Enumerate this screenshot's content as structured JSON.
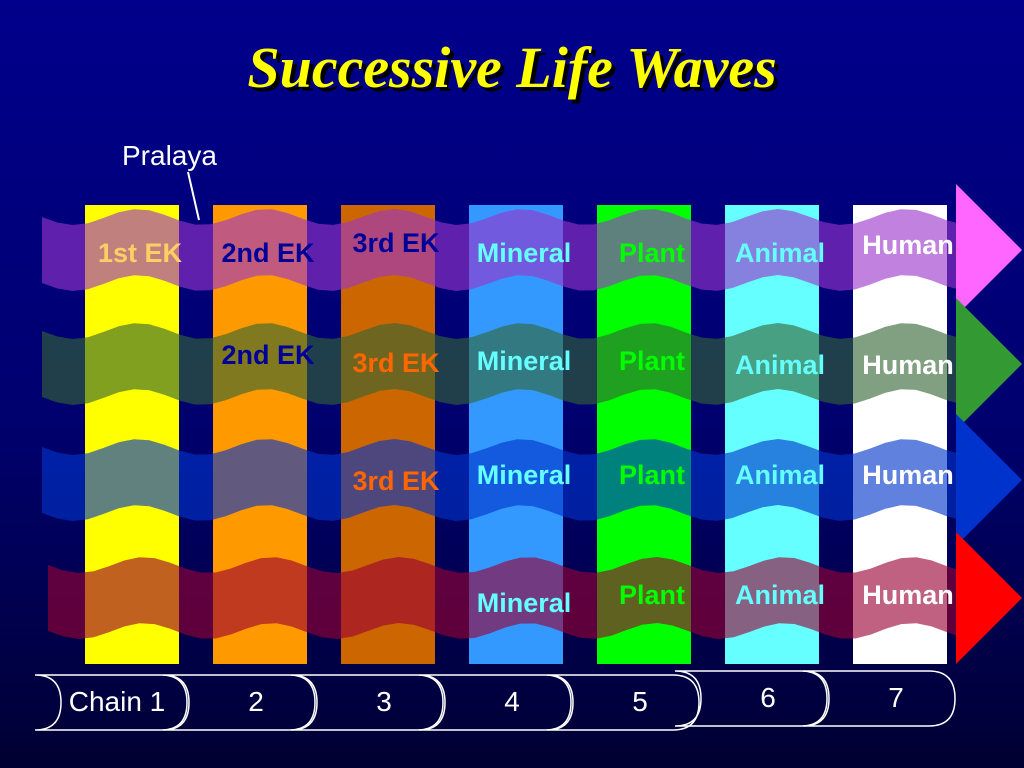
{
  "title": "Successive Life Waves",
  "pralaya_label": "Pralaya",
  "chain_labels": [
    "Chain 1",
    "2",
    "3",
    "4",
    "5",
    "6",
    "7"
  ],
  "column_colors": [
    "#ffff00",
    "#ff9900",
    "#cc6600",
    "#3399ff",
    "#00ff00",
    "#66ffff",
    "#ffffff"
  ],
  "waves": [
    {
      "band_color": "#9933cc",
      "arrow_color": "#ff66ff",
      "items": [
        {
          "text": "1st EK",
          "color": "#ffcc66"
        },
        {
          "text": "2nd EK",
          "color": "#000099"
        },
        {
          "text": "3rd EK",
          "color": "#000099"
        },
        {
          "text": "Mineral",
          "color": "#66ffff"
        },
        {
          "text": "Plant",
          "color": "#00ff00"
        },
        {
          "text": "Animal",
          "color": "#66ffff"
        },
        {
          "text": "Human",
          "color": "#ffffff"
        }
      ]
    },
    {
      "band_color": "#336633",
      "arrow_color": "#339933",
      "items": [
        {
          "text": "2nd EK",
          "color": "#000099"
        },
        {
          "text": "3rd EK",
          "color": "#ff6600"
        },
        {
          "text": "Mineral",
          "color": "#66ffff"
        },
        {
          "text": "Plant",
          "color": "#00ff00"
        },
        {
          "text": "Animal",
          "color": "#66ffff"
        },
        {
          "text": "Human",
          "color": "#ffffff"
        }
      ]
    },
    {
      "band_color": "#0033cc",
      "arrow_color": "#0033cc",
      "items": [
        {
          "text": "3rd EK",
          "color": "#ff6600"
        },
        {
          "text": "Mineral",
          "color": "#66ffff"
        },
        {
          "text": "Plant",
          "color": "#00ff00"
        },
        {
          "text": "Animal",
          "color": "#66ffff"
        },
        {
          "text": "Human",
          "color": "#ffffff"
        }
      ]
    },
    {
      "band_color": "#990033",
      "arrow_color": "#ff0000",
      "items": [
        {
          "text": "Mineral",
          "color": "#66ffff"
        },
        {
          "text": "Plant",
          "color": "#00ff00"
        },
        {
          "text": "Animal",
          "color": "#66ffff"
        },
        {
          "text": "Human",
          "color": "#ffffff"
        }
      ]
    }
  ]
}
